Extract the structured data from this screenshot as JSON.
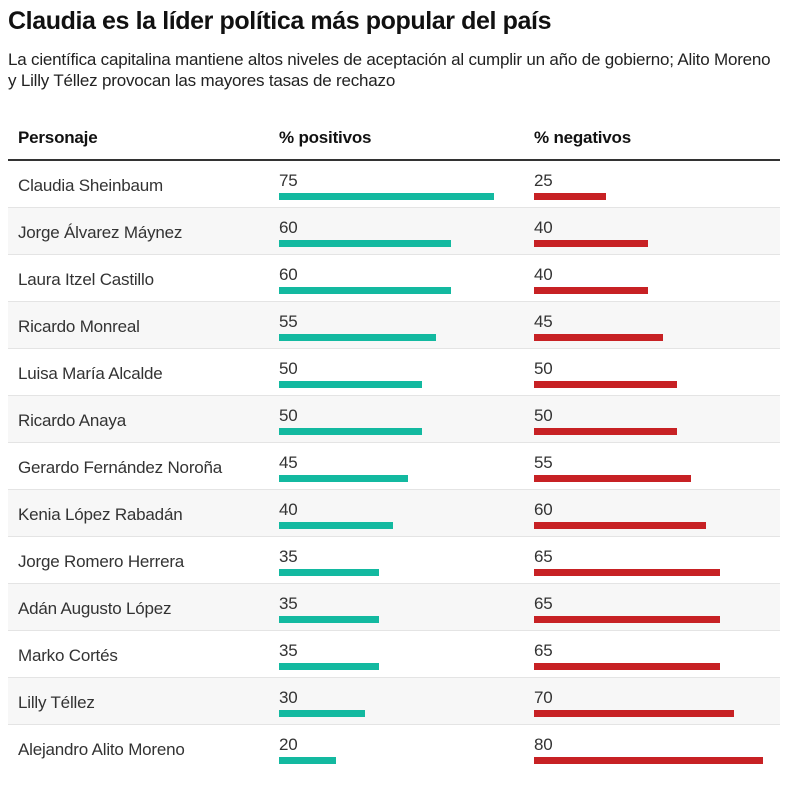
{
  "header": {
    "title": "Claudia es la líder política más popular del país",
    "subtitle": "La científica capitalina mantiene altos niveles de aceptación al cumplir un año de gobierno; Alito Moreno y Lilly Téllez provocan las mayores tasas de rechazo"
  },
  "colors": {
    "positive": "#13b9a0",
    "negative": "#c72124"
  },
  "chart_data": {
    "type": "table",
    "title": "Claudia es la líder política más popular del país",
    "subtitle": "La científica capitalina mantiene altos niveles de aceptación al cumplir un año de gobierno; Alito Moreno y Lilly Téllez provocan las mayores tasas de rechazo",
    "columns": [
      "Personaje",
      "% positivos",
      "% negativos"
    ],
    "scale_max": 100,
    "rows": [
      {
        "name": "Claudia Sheinbaum",
        "positive": 75,
        "negative": 25
      },
      {
        "name": "Jorge Álvarez Máynez",
        "positive": 60,
        "negative": 40
      },
      {
        "name": "Laura Itzel Castillo",
        "positive": 60,
        "negative": 40
      },
      {
        "name": "Ricardo Monreal",
        "positive": 55,
        "negative": 45
      },
      {
        "name": "Luisa María Alcalde",
        "positive": 50,
        "negative": 50
      },
      {
        "name": "Ricardo Anaya",
        "positive": 50,
        "negative": 50
      },
      {
        "name": "Gerardo Fernández Noroña",
        "positive": 45,
        "negative": 55
      },
      {
        "name": "Kenia López Rabadán",
        "positive": 40,
        "negative": 60
      },
      {
        "name": "Jorge Romero Herrera",
        "positive": 35,
        "negative": 65
      },
      {
        "name": "Adán Augusto López",
        "positive": 35,
        "negative": 65
      },
      {
        "name": "Marko Cortés",
        "positive": 35,
        "negative": 65
      },
      {
        "name": "Lilly Téllez",
        "positive": 30,
        "negative": 70
      },
      {
        "name": "Alejandro Alito Moreno",
        "positive": 20,
        "negative": 80
      }
    ]
  }
}
